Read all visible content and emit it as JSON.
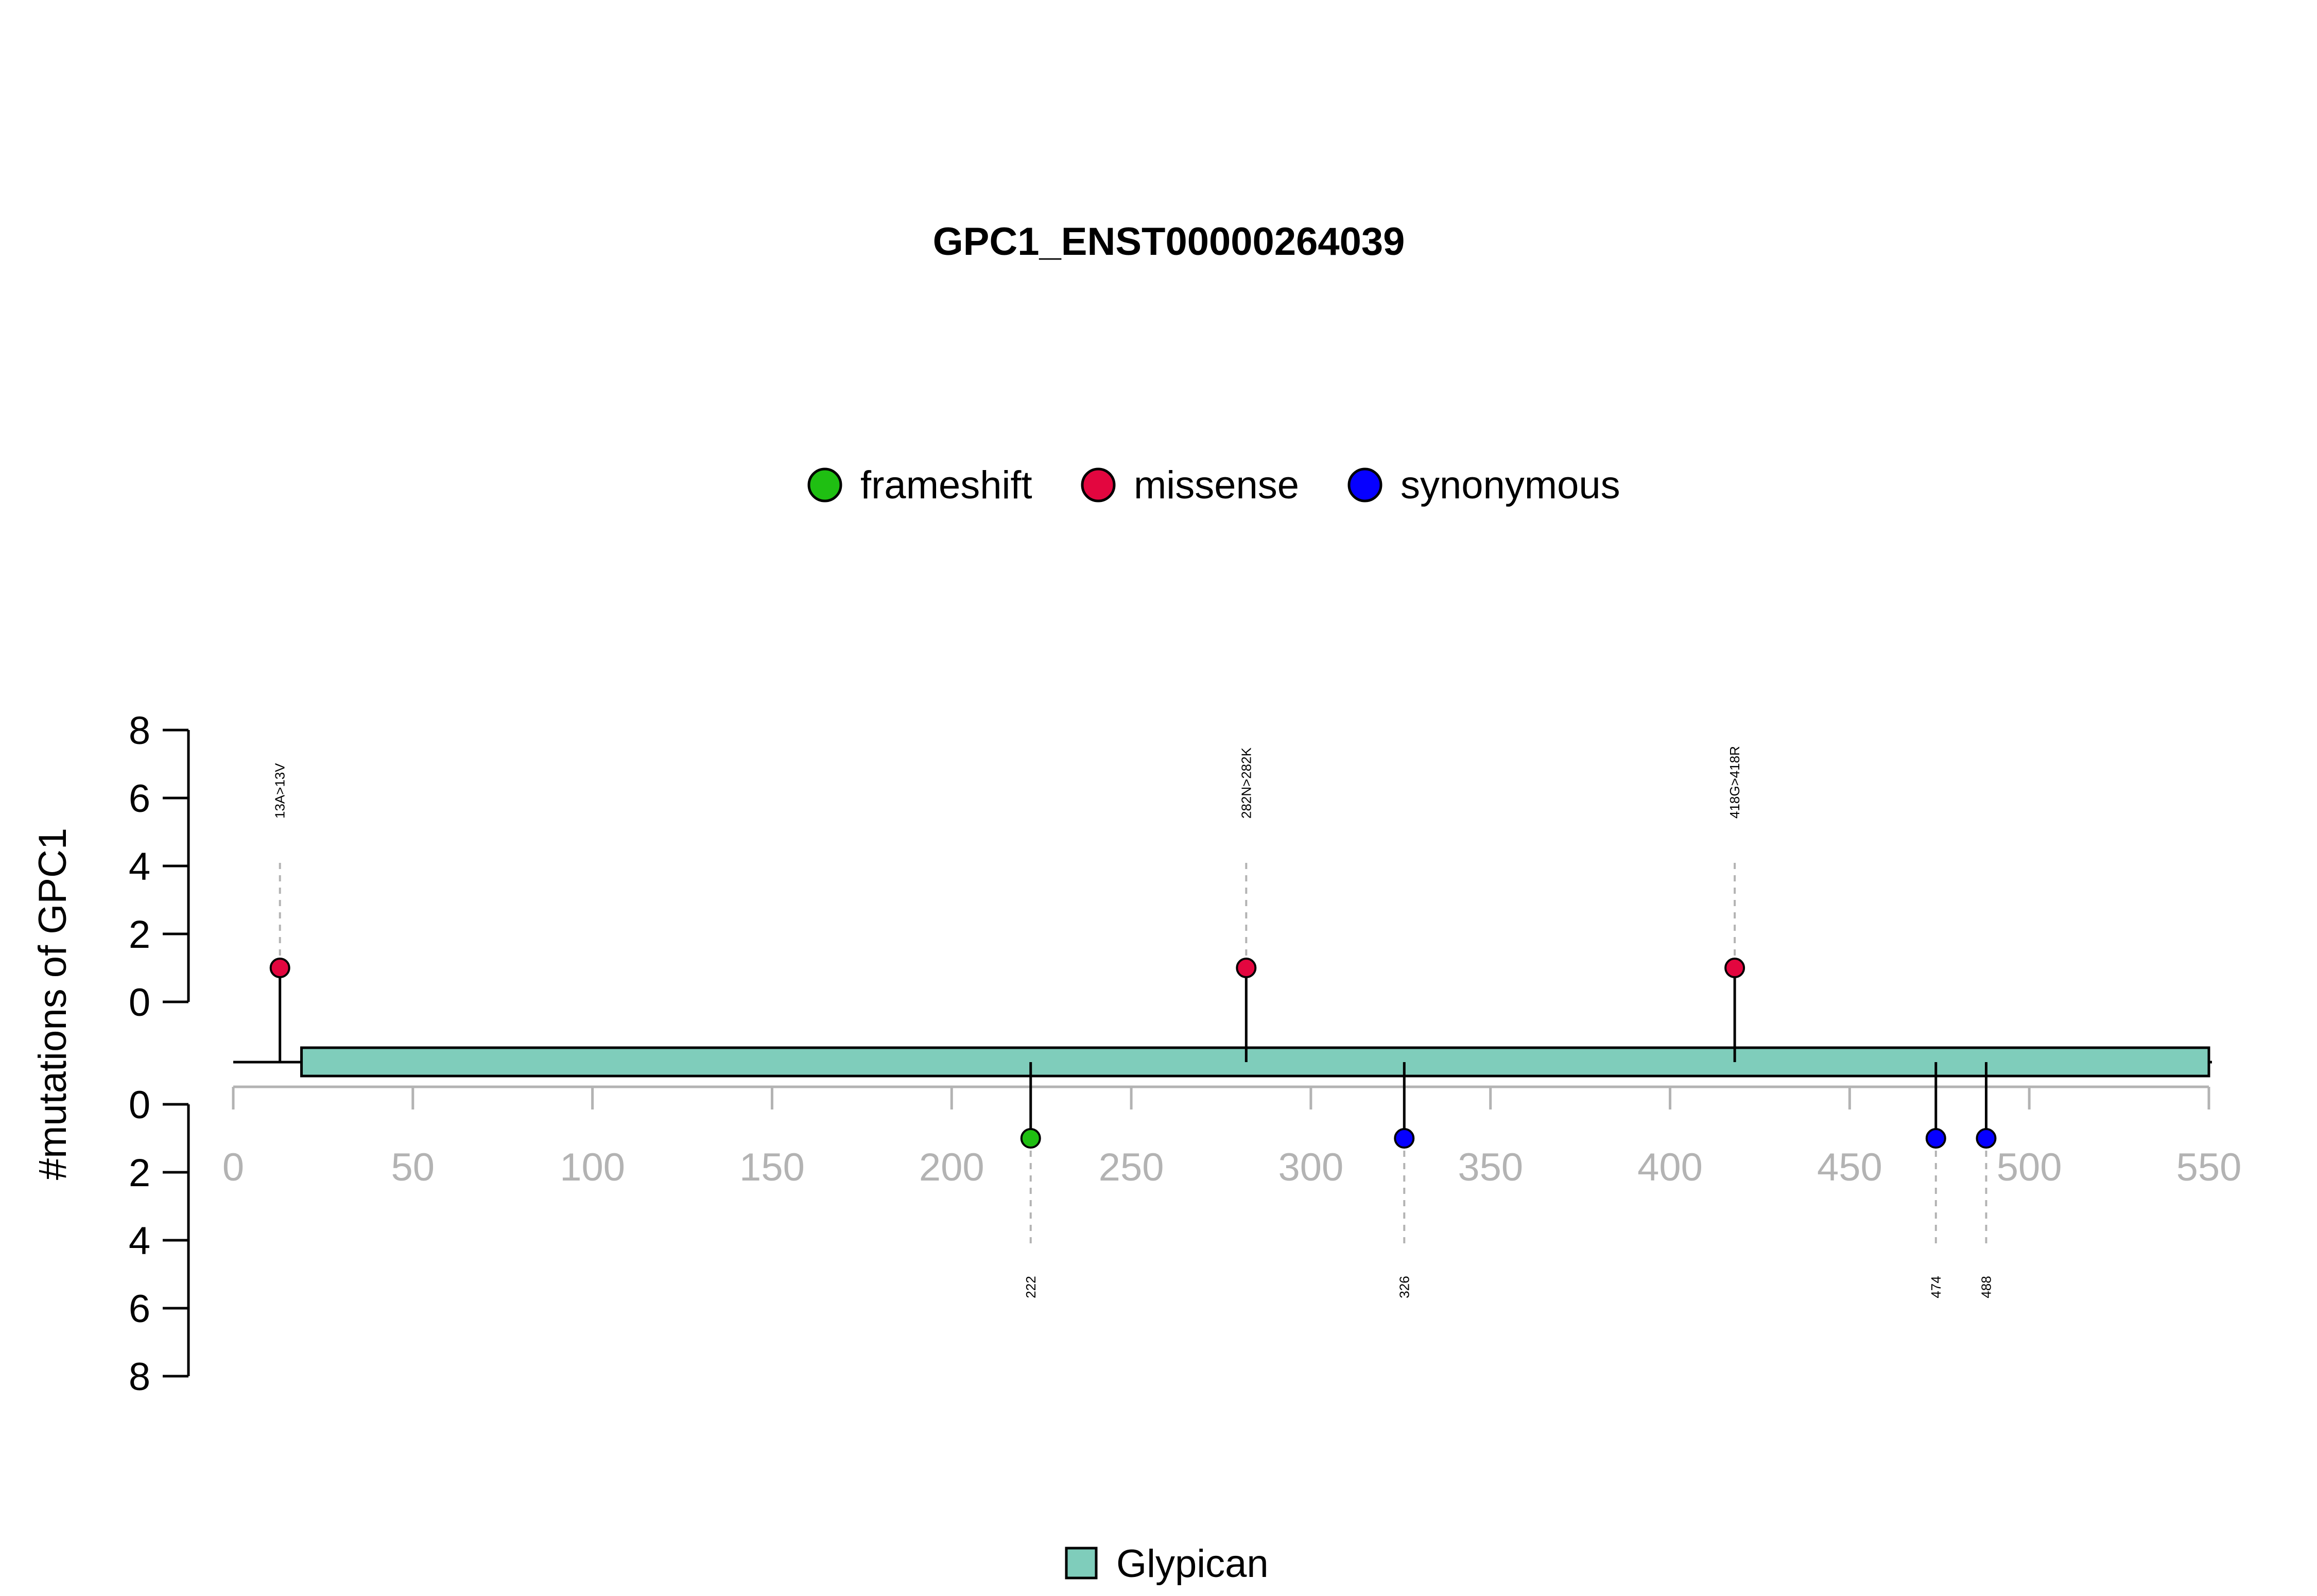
{
  "chart_data": {
    "type": "lollipop",
    "title": "GPC1_ENST00000264039",
    "ylabel": "#mutations of GPC1",
    "xlim": [
      0,
      550
    ],
    "x_ticks": [
      0,
      50,
      100,
      150,
      200,
      250,
      300,
      350,
      400,
      450,
      500,
      550
    ],
    "y_ticks": [
      0,
      2,
      4,
      6,
      8
    ],
    "ylim": [
      0,
      8
    ],
    "protein_length": 550,
    "legend": [
      {
        "name": "frameshift",
        "color": "#1fbf12"
      },
      {
        "name": "missense",
        "color": "#e3063f"
      },
      {
        "name": "synonymous",
        "color": "#0600ff"
      }
    ],
    "mutations": [
      {
        "position": 13,
        "count": 1,
        "type": "missense",
        "label": "13A>13V",
        "side": "top"
      },
      {
        "position": 282,
        "count": 1,
        "type": "missense",
        "label": "282N>282K",
        "side": "top"
      },
      {
        "position": 418,
        "count": 1,
        "type": "missense",
        "label": "418G>418R",
        "side": "top"
      },
      {
        "position": 222,
        "count": 1,
        "type": "frameshift",
        "label": "222",
        "side": "bottom"
      },
      {
        "position": 326,
        "count": 1,
        "type": "synonymous",
        "label": "326",
        "side": "bottom"
      },
      {
        "position": 474,
        "count": 1,
        "type": "synonymous",
        "label": "474",
        "side": "bottom"
      },
      {
        "position": 488,
        "count": 1,
        "type": "synonymous",
        "label": "488",
        "side": "bottom"
      }
    ],
    "domains": [
      {
        "name": "Glypican",
        "start": 19,
        "end": 550,
        "color": "#7fcdbb"
      }
    ]
  }
}
